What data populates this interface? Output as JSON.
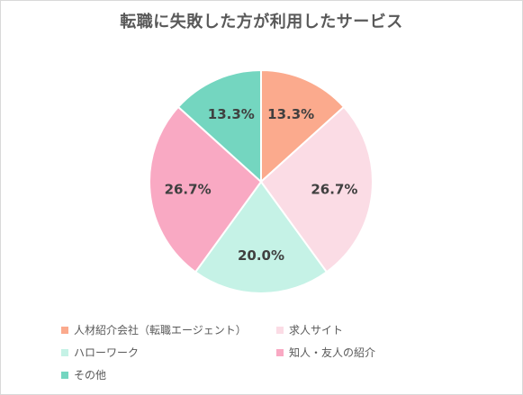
{
  "chart_data": {
    "type": "pie",
    "title": "転職に失敗した方が利用したサービス",
    "slices": [
      {
        "name": "人材紹介会社（転職エージェント）",
        "value": 13.3,
        "label": "13.3%",
        "color": "#FBAA8D"
      },
      {
        "name": "求人サイト",
        "value": 26.7,
        "label": "26.7%",
        "color": "#FBDCE5"
      },
      {
        "name": "ハローワーク",
        "value": 20.0,
        "label": "20.0%",
        "color": "#C5F2E6"
      },
      {
        "name": "知人・友人の紹介",
        "value": 26.7,
        "label": "26.7%",
        "color": "#F9A9C3"
      },
      {
        "name": "その他",
        "value": 13.3,
        "label": "13.3%",
        "color": "#74D6C0"
      }
    ],
    "legend_position": "bottom"
  }
}
